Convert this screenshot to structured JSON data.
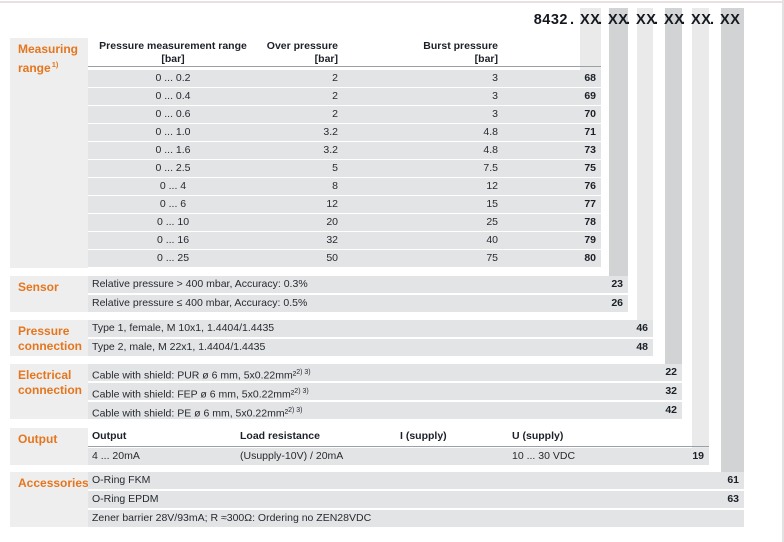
{
  "colors": {
    "accent_orange": "#e5761e",
    "band_light": "#eaeaea",
    "band_dark": "#d2d3d5",
    "row_gray": "#e3e4e5",
    "text_dark": "#1c2027"
  },
  "header": {
    "product": "8432",
    "separator": ".",
    "code_groups": [
      "XX",
      "XX",
      "XX",
      "XX",
      "XX",
      "XX"
    ]
  },
  "measuring": {
    "label_line1": "Measuring",
    "label_line2": "range",
    "label_sup": "1)",
    "col1": "Pressure measurement range",
    "col2": "Over pressure",
    "col3": "Burst pressure",
    "unit": "[bar]",
    "rows": [
      {
        "range": "0 ... 0.2",
        "over": "2",
        "burst": "3",
        "code": "68"
      },
      {
        "range": "0 ... 0.4",
        "over": "2",
        "burst": "3",
        "code": "69"
      },
      {
        "range": "0 ... 0.6",
        "over": "2",
        "burst": "3",
        "code": "70"
      },
      {
        "range": "0 ... 1.0",
        "over": "3.2",
        "burst": "4.8",
        "code": "71"
      },
      {
        "range": "0 ... 1.6",
        "over": "3.2",
        "burst": "4.8",
        "code": "73"
      },
      {
        "range": "0 ... 2.5",
        "over": "5",
        "burst": "7.5",
        "code": "75"
      },
      {
        "range": "0 ... 4",
        "over": "8",
        "burst": "12",
        "code": "76"
      },
      {
        "range": "0 ... 6",
        "over": "12",
        "burst": "15",
        "code": "77"
      },
      {
        "range": "0 ... 10",
        "over": "20",
        "burst": "25",
        "code": "78"
      },
      {
        "range": "0 ... 16",
        "over": "32",
        "burst": "40",
        "code": "79"
      },
      {
        "range": "0 ... 25",
        "over": "50",
        "burst": "75",
        "code": "80"
      }
    ]
  },
  "sensor": {
    "label_line1": "Sensor",
    "label_line2": "",
    "rows": [
      {
        "text": "Relative pressure > 400 mbar, Accuracy: 0.3%",
        "code": "23"
      },
      {
        "text": "Relative pressure ≤ 400 mbar, Accuracy: 0.5%",
        "code": "26"
      }
    ]
  },
  "pressure_connection": {
    "label_line1": "Pressure",
    "label_line2": "connection",
    "rows": [
      {
        "text": "Type 1, female, M 10x1, 1.4404/1.4435",
        "code": "46"
      },
      {
        "text": "Type 2, male, M 22x1, 1.4404/1.4435",
        "code": "48"
      }
    ]
  },
  "electrical_connection": {
    "label_line1": "Electrical",
    "label_line2": "connection",
    "rows": [
      {
        "text": "Cable with shield: PUR ø 6 mm, 5x0.22mm²",
        "sup": "2) 3)",
        "code": "22"
      },
      {
        "text": "Cable with shield: FEP ø 6 mm, 5x0.22mm²",
        "sup": "2) 3)",
        "code": "32"
      },
      {
        "text": "Cable with shield: PE ø 6 mm, 5x0.22mm²",
        "sup": "2) 3)",
        "code": "42"
      }
    ]
  },
  "output": {
    "label_line1": "Output",
    "label_line2": "",
    "columns": [
      "Output",
      "Load resistance",
      "I (supply)",
      "U (supply)"
    ],
    "row": {
      "output": "4 ... 20mA",
      "load": "(Usupply-10V) / 20mA",
      "i_supply": "",
      "u_supply": "10 ... 30 VDC",
      "code": "19"
    }
  },
  "accessories": {
    "label_line1": "Accessories",
    "label_line2": "",
    "rows": [
      {
        "text": "O-Ring FKM",
        "code": "61"
      },
      {
        "text": "O-Ring EPDM",
        "code": "63"
      },
      {
        "text": "Zener barrier 28V/93mA; R ≈300Ω: Ordering no ZEN28VDC",
        "code": ""
      }
    ]
  }
}
